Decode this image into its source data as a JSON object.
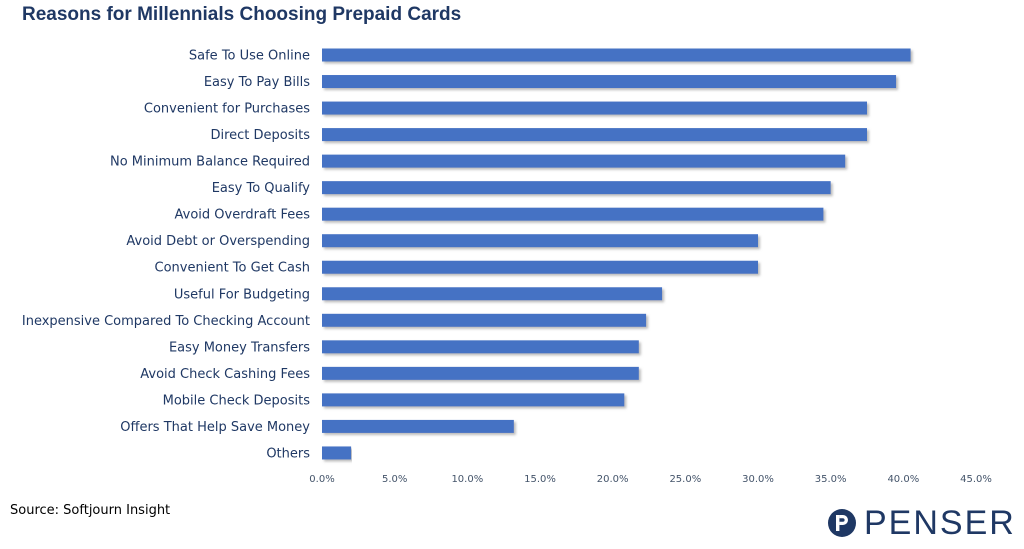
{
  "header": {
    "title": "Reasons for Millennials Choosing Prepaid Cards"
  },
  "footer": {
    "source": "Source: Softjourn Insight"
  },
  "brand": {
    "name": "PENSER",
    "color": "#1f3864"
  },
  "colors": {
    "bar": "#4472c4",
    "bar_shadow": "#c9c9c9",
    "label": "#1f3864",
    "tick": "#44546a"
  },
  "chart_data": {
    "type": "bar",
    "orientation": "horizontal",
    "title": "Reasons for Millennials Choosing Prepaid Cards",
    "categories": [
      "Safe To Use Online",
      "Easy To Pay Bills",
      "Convenient for Purchases",
      "Direct Deposits",
      "No Minimum Balance Required",
      "Easy To Qualify",
      "Avoid Overdraft Fees",
      "Avoid Debt or Overspending",
      "Convenient To Get Cash",
      "Useful For Budgeting",
      "Inexpensive Compared To Checking Account",
      "Easy Money Transfers",
      "Avoid Check Cashing Fees",
      "Mobile Check Deposits",
      "Offers That Help Save Money",
      "Others"
    ],
    "values": [
      40.5,
      39.5,
      37.5,
      37.5,
      36.0,
      35.0,
      34.5,
      30.0,
      30.0,
      23.4,
      22.3,
      21.8,
      21.8,
      20.8,
      13.2,
      2.0
    ],
    "unit": "%",
    "xlim": [
      0,
      45
    ],
    "xticks": [
      "0.0%",
      "5.0%",
      "10.0%",
      "15.0%",
      "20.0%",
      "25.0%",
      "30.0%",
      "35.0%",
      "40.0%",
      "45.0%"
    ],
    "grid": false,
    "legend": "none"
  }
}
